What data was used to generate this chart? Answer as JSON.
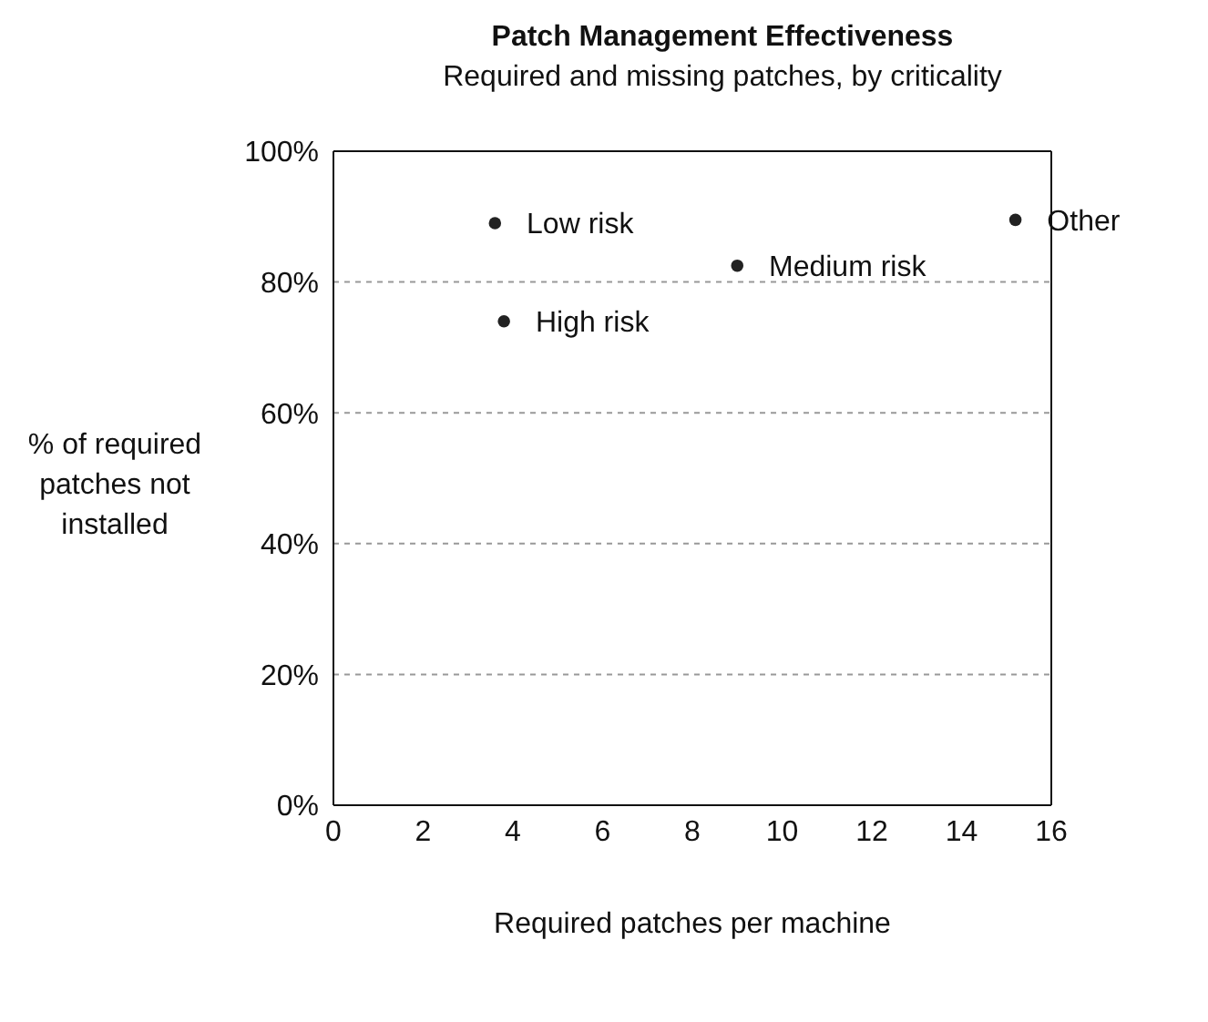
{
  "chart_data": {
    "type": "scatter",
    "title": "Patch Management Effectiveness",
    "subtitle": "Required and missing patches, by criticality",
    "xlabel": "Required patches per machine",
    "ylabel": "% of required patches not installed",
    "xlim": [
      0,
      16
    ],
    "xticks": [
      0,
      2,
      4,
      6,
      8,
      10,
      12,
      14,
      16
    ],
    "ylim": [
      0,
      100
    ],
    "yticks": [
      {
        "value": 0,
        "label": "0%"
      },
      {
        "value": 20,
        "label": "20%"
      },
      {
        "value": 40,
        "label": "40%"
      },
      {
        "value": 60,
        "label": "60%"
      },
      {
        "value": 80,
        "label": "80%"
      },
      {
        "value": 100,
        "label": "100%"
      }
    ],
    "grid": "y",
    "legend": false,
    "marker": "circle",
    "series": [
      {
        "name": "Low risk",
        "color": "#222222",
        "x": [
          3.6
        ],
        "values": [
          89
        ]
      },
      {
        "name": "High risk",
        "color": "#222222",
        "x": [
          3.8
        ],
        "values": [
          74
        ]
      },
      {
        "name": "Medium risk",
        "color": "#222222",
        "x": [
          9
        ],
        "values": [
          82.5
        ]
      },
      {
        "name": "Other",
        "color": "#222222",
        "x": [
          15.2
        ],
        "values": [
          89.5
        ]
      }
    ]
  }
}
